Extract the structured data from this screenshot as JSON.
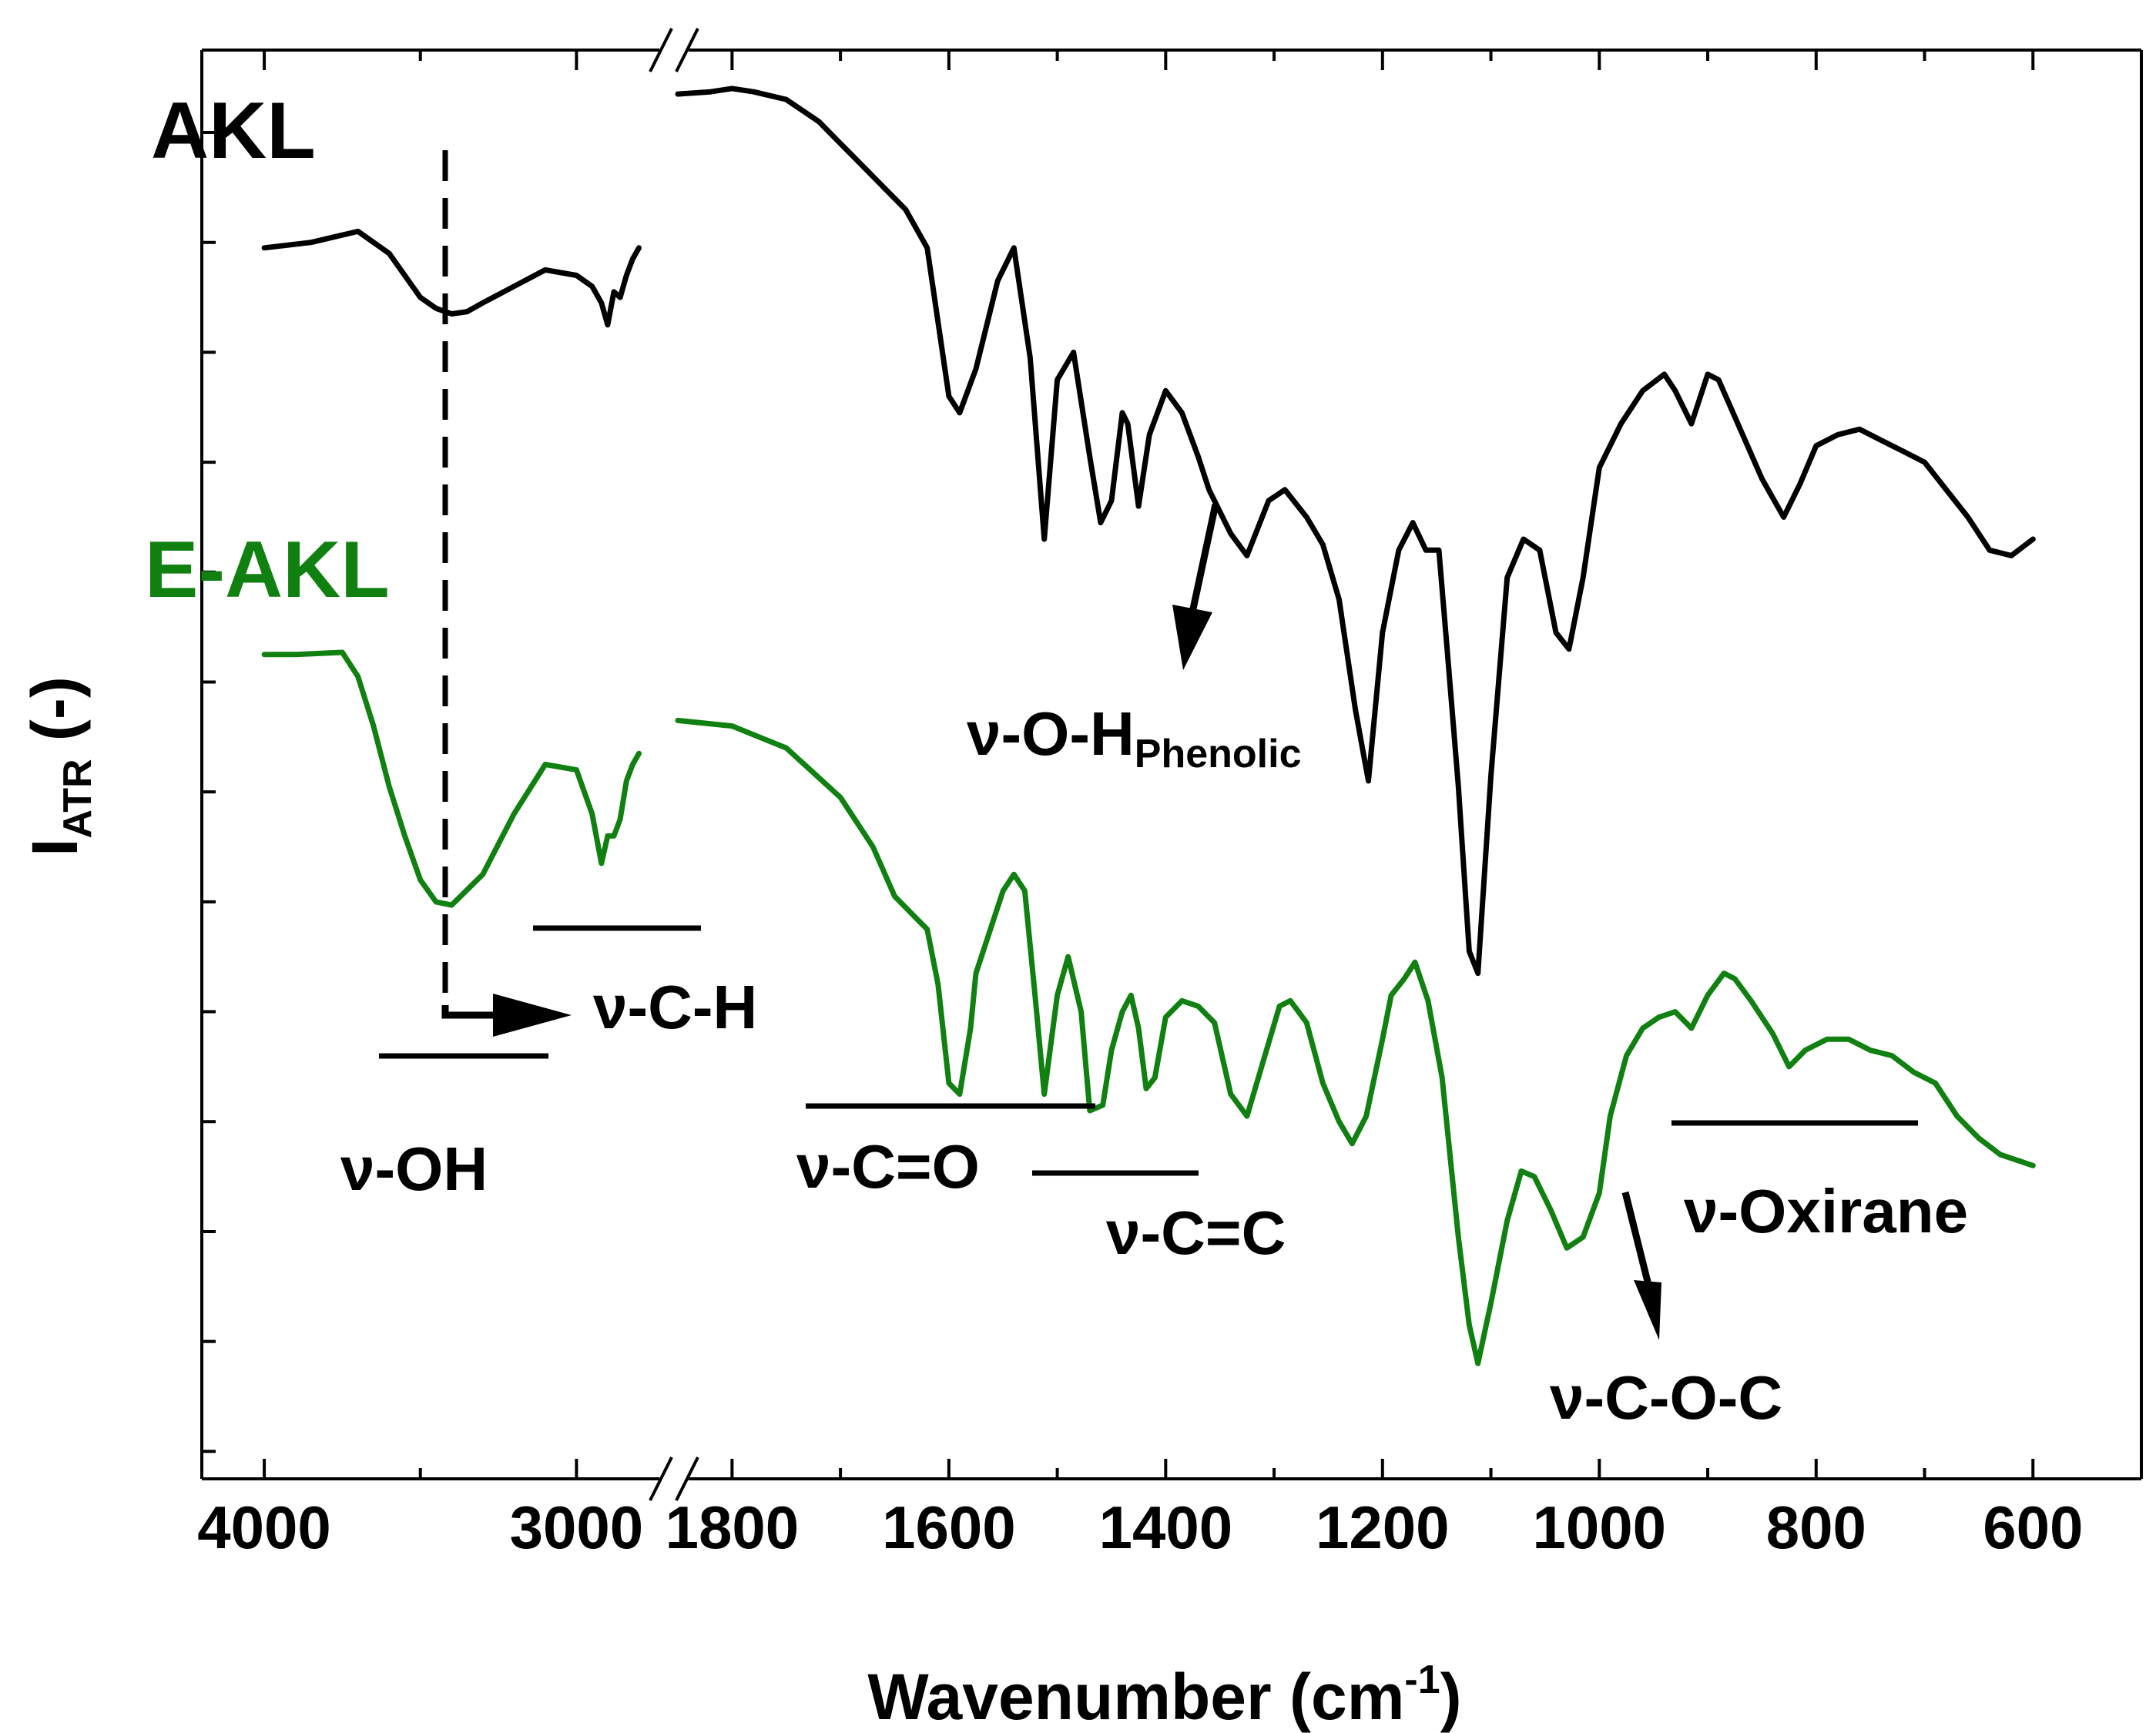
{
  "chart_data": {
    "type": "line",
    "title": "",
    "xlabel": "Wavenumber (cm",
    "xlabel_sup": "-1",
    "xlabel_close": ")",
    "ylabel": "I",
    "ylabel_sub": "ATR",
    "ylabel_suffix": " (-)",
    "axis_break": "x-axis broken between 2700 and 1850 cm-1",
    "x_segments": [
      {
        "range": [
          4200,
          2700
        ],
        "ticks": [
          4000,
          3000
        ],
        "tick_labels": [
          "4000",
          "3000"
        ],
        "minor": [
          3500
        ]
      },
      {
        "range": [
          1850,
          500
        ],
        "ticks": [
          1800,
          1600,
          1400,
          1200,
          1000,
          800,
          600
        ],
        "tick_labels": [
          "1800",
          "1600",
          "1400",
          "1200",
          "1000",
          "800",
          "600"
        ],
        "minor": [
          1700,
          1500,
          1300,
          1100,
          900,
          700
        ]
      }
    ],
    "yticks": [
      0,
      1,
      2,
      3,
      4,
      5,
      6,
      7,
      8,
      9,
      10,
      11,
      12
    ],
    "ytick_labels": [],
    "ylim": [
      0,
      13
    ],
    "series": [
      {
        "name": "AKL",
        "color": "#000000",
        "segments": [
          {
            "x": [
              4000,
              3850,
              3700,
              3600,
              3500,
              3450,
              3400,
              3350,
              3300,
              3200,
              3100,
              3000,
              2950,
              2920,
              2900,
              2880,
              2860,
              2840,
              2820,
              2800
            ],
            "y": [
              11.2,
              11.25,
              11.35,
              11.15,
              10.75,
              10.65,
              10.6,
              10.62,
              10.7,
              10.85,
              11.0,
              10.95,
              10.85,
              10.7,
              10.5,
              10.8,
              10.75,
              10.95,
              11.1,
              11.2
            ]
          },
          {
            "x": [
              1850,
              1820,
              1800,
              1780,
              1750,
              1720,
              1700,
              1680,
              1660,
              1640,
              1620,
              1600,
              1590,
              1575,
              1555,
              1540,
              1525,
              1512,
              1500,
              1485,
              1470,
              1460,
              1450,
              1440,
              1435,
              1425,
              1415,
              1400,
              1385,
              1370,
              1360,
              1340,
              1325,
              1305,
              1290,
              1270,
              1255,
              1240,
              1225,
              1213,
              1200,
              1185,
              1172,
              1160,
              1148,
              1140,
              1130,
              1120,
              1112,
              1100,
              1085,
              1070,
              1055,
              1040,
              1028,
              1015,
              1000,
              980,
              960,
              940,
              930,
              915,
              900,
              890,
              870,
              850,
              830,
              815,
              800,
              780,
              760,
              740,
              720,
              700,
              680,
              660,
              640,
              620,
              600
            ],
            "y": [
              12.6,
              12.62,
              12.65,
              12.62,
              12.55,
              12.35,
              12.15,
              11.95,
              11.75,
              11.55,
              11.2,
              9.85,
              9.7,
              10.1,
              10.9,
              11.2,
              10.2,
              8.55,
              10.0,
              10.25,
              9.3,
              8.7,
              8.9,
              9.7,
              9.6,
              8.85,
              9.5,
              9.9,
              9.7,
              9.3,
              9.0,
              8.6,
              8.4,
              8.9,
              9.0,
              8.75,
              8.5,
              8.0,
              7.0,
              6.35,
              7.7,
              8.45,
              8.7,
              8.45,
              8.45,
              7.5,
              6.3,
              4.8,
              4.6,
              6.4,
              8.2,
              8.55,
              8.45,
              7.7,
              7.55,
              8.2,
              9.2,
              9.6,
              9.9,
              10.05,
              9.9,
              9.6,
              10.05,
              10.0,
              9.55,
              9.1,
              8.75,
              9.05,
              9.4,
              9.5,
              9.55,
              9.45,
              9.35,
              9.25,
              9.0,
              8.75,
              8.45,
              8.4,
              8.55
            ]
          }
        ]
      },
      {
        "name": "E-AKL",
        "color": "#108010",
        "segments": [
          {
            "x": [
              4000,
              3900,
              3750,
              3700,
              3650,
              3600,
              3550,
              3500,
              3450,
              3400,
              3300,
              3200,
              3100,
              3000,
              2950,
              2920,
              2900,
              2880,
              2860,
              2840,
              2820,
              2800
            ],
            "y": [
              7.5,
              7.5,
              7.52,
              7.3,
              6.85,
              6.3,
              5.85,
              5.45,
              5.25,
              5.22,
              5.5,
              6.05,
              6.5,
              6.45,
              6.05,
              5.6,
              5.85,
              5.85,
              6.0,
              6.35,
              6.5,
              6.6
            ]
          },
          {
            "x": [
              1850,
              1800,
              1750,
              1700,
              1670,
              1650,
              1630,
              1620,
              1610,
              1600,
              1590,
              1580,
              1575,
              1565,
              1550,
              1540,
              1530,
              1520,
              1512,
              1500,
              1490,
              1478,
              1470,
              1458,
              1450,
              1440,
              1432,
              1425,
              1418,
              1410,
              1400,
              1385,
              1370,
              1355,
              1340,
              1325,
              1310,
              1295,
              1285,
              1270,
              1255,
              1240,
              1228,
              1215,
              1200,
              1192,
              1180,
              1170,
              1158,
              1145,
              1130,
              1120,
              1112,
              1100,
              1085,
              1072,
              1060,
              1045,
              1030,
              1015,
              1000,
              990,
              975,
              960,
              945,
              930,
              915,
              900,
              885,
              875,
              860,
              840,
              825,
              810,
              790,
              770,
              750,
              730,
              710,
              690,
              670,
              650,
              630,
              600
            ],
            "y": [
              6.9,
              6.85,
              6.65,
              6.2,
              5.75,
              5.3,
              5.1,
              5.0,
              4.5,
              3.6,
              3.5,
              4.1,
              4.6,
              4.9,
              5.35,
              5.5,
              5.35,
              4.35,
              3.5,
              4.4,
              4.75,
              4.25,
              3.35,
              3.4,
              3.9,
              4.25,
              4.4,
              4.1,
              3.55,
              3.65,
              4.2,
              4.35,
              4.3,
              4.15,
              3.5,
              3.3,
              3.8,
              4.3,
              4.35,
              4.15,
              3.6,
              3.25,
              3.05,
              3.3,
              4.0,
              4.4,
              4.55,
              4.7,
              4.35,
              3.65,
              2.2,
              1.4,
              1.05,
              1.6,
              2.35,
              2.8,
              2.75,
              2.45,
              2.1,
              2.2,
              2.6,
              3.3,
              3.85,
              4.1,
              4.2,
              4.25,
              4.1,
              4.4,
              4.6,
              4.55,
              4.35,
              4.05,
              3.75,
              3.9,
              4.0,
              4.0,
              3.9,
              3.85,
              3.7,
              3.6,
              3.3,
              3.1,
              2.95,
              2.85
            ]
          }
        ]
      }
    ],
    "series_labels": [
      "AKL",
      "E-AKL"
    ],
    "annotations": {
      "v_oh": "ν-OH",
      "v_ch": "ν-C-H",
      "v_oh_phenolic": "ν-O-H",
      "v_oh_phenolic_sub": "Phenolic",
      "v_co": "ν-C=O",
      "v_cc": "ν-C=C",
      "v_coc": "ν-C-O-C",
      "v_oxirane": "ν-Oxirane"
    }
  }
}
